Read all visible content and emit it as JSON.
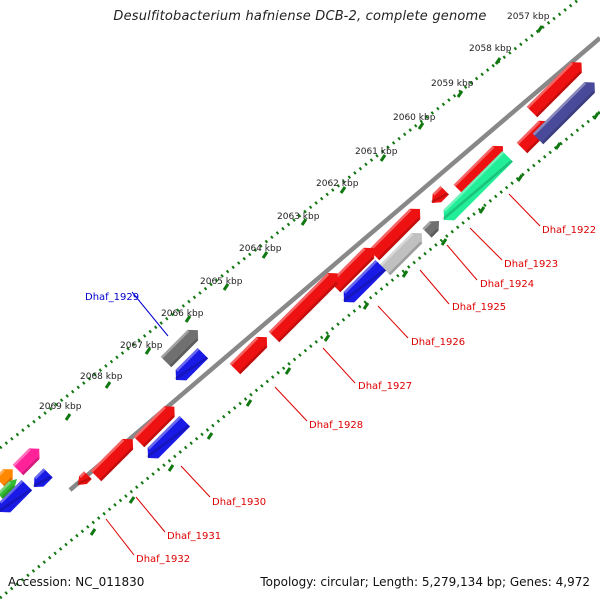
{
  "title": "Desulfitobacterium hafniense DCB-2, complete genome",
  "footer": {
    "accession": "Accession: NC_011830",
    "summary": "Topology: circular; Length: 5,279,134 bp; Genes: 4,972"
  },
  "ticks": [
    "2057 kbp",
    "2058 kbp",
    "2059 kbp",
    "2060 kbp",
    "2061 kbp",
    "2062 kbp",
    "2063 kbp",
    "2064 kbp",
    "2065 kbp",
    "2066 kbp",
    "2067 kbp",
    "2068 kbp",
    "2069 kbp"
  ],
  "gene_labels": [
    {
      "name": "Dhaf_1922",
      "color": "#dd0000"
    },
    {
      "name": "Dhaf_1923",
      "color": "#dd0000"
    },
    {
      "name": "Dhaf_1924",
      "color": "#dd0000"
    },
    {
      "name": "Dhaf_1925",
      "color": "#dd0000"
    },
    {
      "name": "Dhaf_1926",
      "color": "#dd0000"
    },
    {
      "name": "Dhaf_1927",
      "color": "#dd0000"
    },
    {
      "name": "Dhaf_1928",
      "color": "#dd0000"
    },
    {
      "name": "Dhaf_1929",
      "color": "#0000cc"
    },
    {
      "name": "Dhaf_1930",
      "color": "#dd0000"
    },
    {
      "name": "Dhaf_1931",
      "color": "#dd0000"
    },
    {
      "name": "Dhaf_1932",
      "color": "#dd0000"
    }
  ],
  "colors": {
    "backbone": "#888888",
    "tick_track": "#117711",
    "forward": "#ee1111",
    "reverse": "#1a1ae6",
    "teal": "#22ee99",
    "gray": "#707070",
    "light_gray": "#c0c0c0",
    "purple": "#4a4a9a",
    "pink": "#ff2299",
    "orange": "#ff8800",
    "green": "#33bb33"
  }
}
